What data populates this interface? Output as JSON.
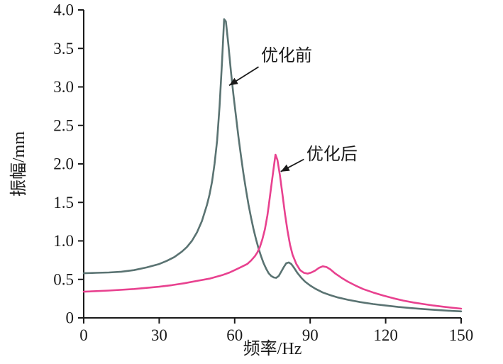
{
  "figure": {
    "background": "#ffffff",
    "axis_color": "#1a1a1a"
  },
  "chart_data": {
    "type": "line",
    "title": "",
    "xlabel": "频率/Hz",
    "ylabel": "振幅/mm",
    "xlim": [
      0,
      150
    ],
    "ylim": [
      0,
      4.0
    ],
    "grid": false,
    "legend_position": "none",
    "x_ticks": [
      {
        "value": 0,
        "label": "0"
      },
      {
        "value": 30,
        "label": "30"
      },
      {
        "value": 60,
        "label": "60"
      },
      {
        "value": 90,
        "label": "90"
      },
      {
        "value": 120,
        "label": "120"
      },
      {
        "value": 150,
        "label": "150"
      }
    ],
    "y_ticks": [
      {
        "value": 0,
        "label": "0"
      },
      {
        "value": 0.5,
        "label": "0.5"
      },
      {
        "value": 1.0,
        "label": "1.0"
      },
      {
        "value": 1.5,
        "label": "1.5"
      },
      {
        "value": 2.0,
        "label": "2.0"
      },
      {
        "value": 2.5,
        "label": "2.5"
      },
      {
        "value": 3.0,
        "label": "3.0"
      },
      {
        "value": 3.5,
        "label": "3.5"
      },
      {
        "value": 4.0,
        "label": "4.0"
      }
    ],
    "series": [
      {
        "name": "优化前",
        "color": "#5a7372",
        "peak": {
          "x": 55.8,
          "y": 3.9
        },
        "points": [
          [
            0,
            0.58
          ],
          [
            5,
            0.585
          ],
          [
            10,
            0.59
          ],
          [
            15,
            0.6
          ],
          [
            20,
            0.62
          ],
          [
            25,
            0.655
          ],
          [
            30,
            0.7
          ],
          [
            33,
            0.74
          ],
          [
            36,
            0.79
          ],
          [
            39,
            0.86
          ],
          [
            41,
            0.92
          ],
          [
            43,
            1.0
          ],
          [
            45,
            1.11
          ],
          [
            47,
            1.26
          ],
          [
            49,
            1.47
          ],
          [
            50,
            1.6
          ],
          [
            51,
            1.77
          ],
          [
            52,
            2.0
          ],
          [
            53,
            2.3
          ],
          [
            54,
            2.75
          ],
          [
            55,
            3.35
          ],
          [
            55.8,
            3.88
          ],
          [
            56.5,
            3.85
          ],
          [
            57.5,
            3.55
          ],
          [
            58.5,
            3.2
          ],
          [
            59.5,
            2.9
          ],
          [
            60.5,
            2.62
          ],
          [
            61.5,
            2.35
          ],
          [
            62.5,
            2.1
          ],
          [
            63.5,
            1.87
          ],
          [
            64.5,
            1.66
          ],
          [
            65.5,
            1.47
          ],
          [
            66.5,
            1.3
          ],
          [
            67.5,
            1.15
          ],
          [
            68.5,
            1.02
          ],
          [
            69.5,
            0.9
          ],
          [
            70.5,
            0.8
          ],
          [
            71.5,
            0.71
          ],
          [
            72.5,
            0.64
          ],
          [
            73.5,
            0.58
          ],
          [
            74.5,
            0.545
          ],
          [
            75.5,
            0.525
          ],
          [
            76.5,
            0.52
          ],
          [
            77.5,
            0.545
          ],
          [
            78.5,
            0.6
          ],
          [
            79.5,
            0.66
          ],
          [
            80.5,
            0.71
          ],
          [
            81.5,
            0.72
          ],
          [
            82.5,
            0.7
          ],
          [
            83.5,
            0.655
          ],
          [
            85,
            0.58
          ],
          [
            86.5,
            0.52
          ],
          [
            88,
            0.47
          ],
          [
            90,
            0.42
          ],
          [
            92,
            0.38
          ],
          [
            95,
            0.33
          ],
          [
            98,
            0.295
          ],
          [
            101,
            0.265
          ],
          [
            105,
            0.235
          ],
          [
            110,
            0.205
          ],
          [
            115,
            0.18
          ],
          [
            120,
            0.16
          ],
          [
            125,
            0.142
          ],
          [
            130,
            0.127
          ],
          [
            135,
            0.114
          ],
          [
            140,
            0.103
          ],
          [
            145,
            0.093
          ],
          [
            150,
            0.085
          ]
        ]
      },
      {
        "name": "优化后",
        "color": "#e8418f",
        "peak": {
          "x": 76.2,
          "y": 2.12
        },
        "points": [
          [
            0,
            0.34
          ],
          [
            10,
            0.355
          ],
          [
            20,
            0.375
          ],
          [
            30,
            0.405
          ],
          [
            35,
            0.425
          ],
          [
            40,
            0.45
          ],
          [
            45,
            0.48
          ],
          [
            50,
            0.51
          ],
          [
            55,
            0.555
          ],
          [
            58,
            0.59
          ],
          [
            60,
            0.62
          ],
          [
            62.5,
            0.66
          ],
          [
            65,
            0.7
          ],
          [
            66.5,
            0.745
          ],
          [
            68,
            0.8
          ],
          [
            69,
            0.85
          ],
          [
            70,
            0.92
          ],
          [
            71,
            1.02
          ],
          [
            72,
            1.15
          ],
          [
            73,
            1.33
          ],
          [
            73.5,
            1.45
          ],
          [
            74.5,
            1.7
          ],
          [
            75.5,
            1.95
          ],
          [
            76.2,
            2.12
          ],
          [
            77,
            2.05
          ],
          [
            78,
            1.85
          ],
          [
            79,
            1.6
          ],
          [
            80,
            1.35
          ],
          [
            81,
            1.13
          ],
          [
            82,
            0.95
          ],
          [
            83,
            0.82
          ],
          [
            84.5,
            0.7
          ],
          [
            86,
            0.62
          ],
          [
            87.5,
            0.585
          ],
          [
            89,
            0.575
          ],
          [
            90.5,
            0.59
          ],
          [
            92,
            0.615
          ],
          [
            93.5,
            0.65
          ],
          [
            95,
            0.67
          ],
          [
            96.5,
            0.66
          ],
          [
            98,
            0.63
          ],
          [
            100,
            0.575
          ],
          [
            102.5,
            0.52
          ],
          [
            105,
            0.47
          ],
          [
            108,
            0.42
          ],
          [
            111,
            0.375
          ],
          [
            115,
            0.33
          ],
          [
            119,
            0.29
          ],
          [
            123,
            0.255
          ],
          [
            127,
            0.225
          ],
          [
            131,
            0.2
          ],
          [
            135,
            0.18
          ],
          [
            139,
            0.16
          ],
          [
            143,
            0.145
          ],
          [
            147,
            0.13
          ],
          [
            150,
            0.12
          ]
        ]
      }
    ],
    "annotations": [
      {
        "text": "优化前",
        "text_xy": [
          70.5,
          3.4
        ],
        "arrow_from_xy": [
          69.5,
          3.26
        ],
        "arrow_to_xy": [
          57.8,
          3.02
        ],
        "color": "#1a1a1a"
      },
      {
        "text": "优化后",
        "text_xy": [
          88.5,
          2.12
        ],
        "arrow_from_xy": [
          87.5,
          2.06
        ],
        "arrow_to_xy": [
          78.3,
          1.9
        ],
        "color": "#1a1a1a"
      }
    ]
  }
}
